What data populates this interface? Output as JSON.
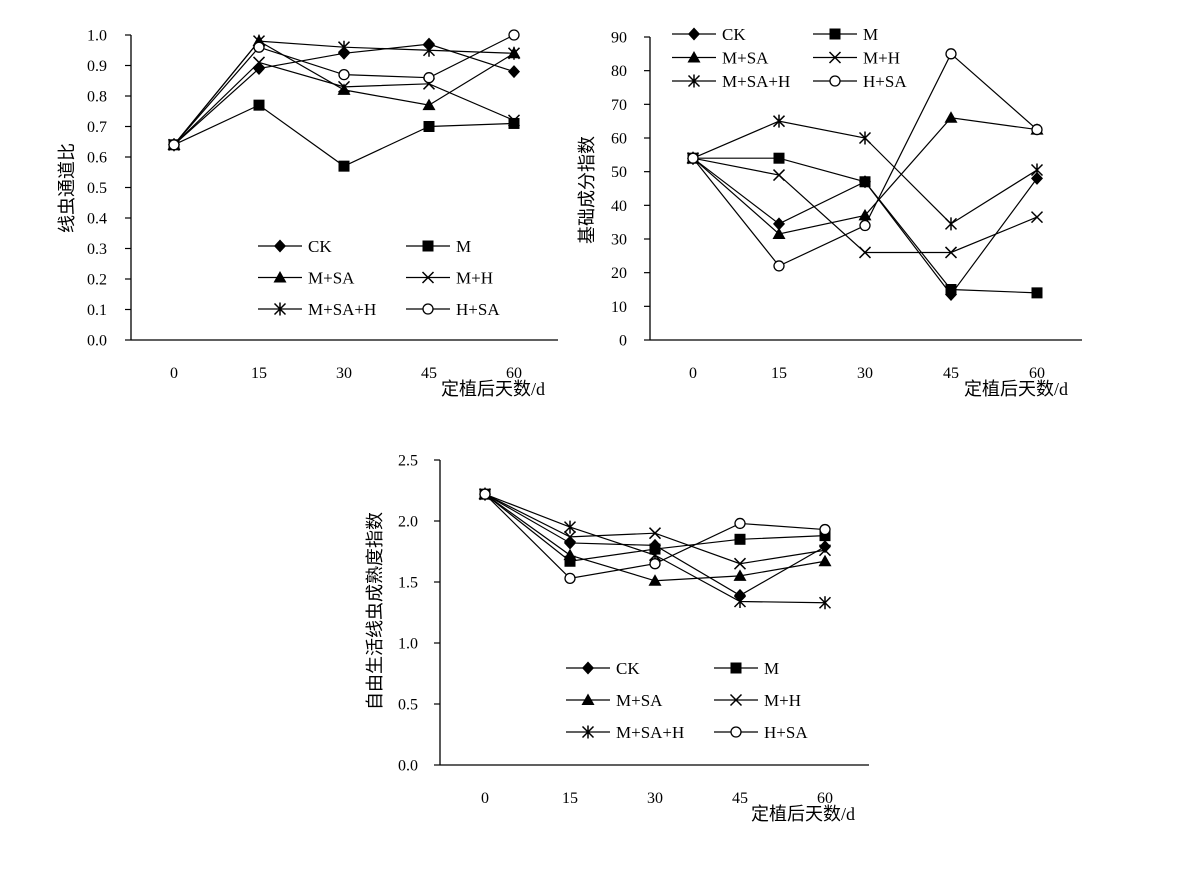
{
  "colors": {
    "line": "#000000",
    "background": "#ffffff"
  },
  "legend_marker_names": {
    "CK": "filled-diamond",
    "M": "filled-square",
    "M+SA": "filled-triangle",
    "M+H": "x-cross",
    "M+SA+H": "asterisk",
    "H+SA": "open-circle"
  },
  "chart_data": [
    {
      "type": "line",
      "xlabel": "定植后天数/d",
      "ylabel": "线虫通道比",
      "x": [
        0,
        15,
        30,
        45,
        60
      ],
      "ylim": [
        0.0,
        1.0
      ],
      "yticks": [
        "0.0",
        "0.1",
        "0.2",
        "0.3",
        "0.4",
        "0.5",
        "0.6",
        "0.7",
        "0.8",
        "0.9",
        "1.0"
      ],
      "legend_position": "bottom-right",
      "grid": false,
      "series": [
        {
          "name": "CK",
          "values": [
            0.64,
            0.89,
            0.94,
            0.97,
            0.88
          ]
        },
        {
          "name": "M",
          "values": [
            0.64,
            0.77,
            0.57,
            0.7,
            0.71
          ]
        },
        {
          "name": "M+SA",
          "values": [
            0.64,
            0.98,
            0.82,
            0.77,
            0.94
          ]
        },
        {
          "name": "M+H",
          "values": [
            0.64,
            0.91,
            0.83,
            0.84,
            0.72
          ]
        },
        {
          "name": "M+SA+H",
          "values": [
            0.64,
            0.98,
            0.96,
            0.95,
            0.94
          ]
        },
        {
          "name": "H+SA",
          "values": [
            0.64,
            0.96,
            0.87,
            0.86,
            1.0
          ]
        }
      ]
    },
    {
      "type": "line",
      "xlabel": "定植后天数/d",
      "ylabel": "基础成分指数",
      "x": [
        0,
        15,
        30,
        45,
        60
      ],
      "ylim": [
        0,
        90
      ],
      "yticks": [
        "0",
        "10",
        "20",
        "30",
        "40",
        "50",
        "60",
        "70",
        "80",
        "90"
      ],
      "legend_position": "top-left",
      "grid": false,
      "series": [
        {
          "name": "CK",
          "values": [
            54,
            34.5,
            47,
            13.5,
            48
          ]
        },
        {
          "name": "M",
          "values": [
            54,
            54,
            47,
            15,
            14
          ]
        },
        {
          "name": "M+SA",
          "values": [
            54,
            31.5,
            37,
            66,
            62.5
          ]
        },
        {
          "name": "M+H",
          "values": [
            54,
            49,
            26,
            26,
            36.5
          ]
        },
        {
          "name": "M+SA+H",
          "values": [
            54,
            65,
            60,
            34.5,
            50.5
          ]
        },
        {
          "name": "H+SA",
          "values": [
            54,
            22,
            34,
            85,
            62.5
          ]
        }
      ]
    },
    {
      "type": "line",
      "xlabel": "定植后天数/d",
      "ylabel": "自由生活线虫成熟度指数",
      "x": [
        0,
        15,
        30,
        45,
        60
      ],
      "ylim": [
        0.0,
        2.5
      ],
      "yticks": [
        "0.0",
        "0.5",
        "1.0",
        "1.5",
        "2.0",
        "2.5"
      ],
      "legend_position": "bottom-right",
      "grid": false,
      "series": [
        {
          "name": "CK",
          "values": [
            2.22,
            1.82,
            1.8,
            1.39,
            1.79
          ]
        },
        {
          "name": "M",
          "values": [
            2.22,
            1.67,
            1.77,
            1.85,
            1.88
          ]
        },
        {
          "name": "M+SA",
          "values": [
            2.22,
            1.72,
            1.51,
            1.55,
            1.67
          ]
        },
        {
          "name": "M+H",
          "values": [
            2.22,
            1.87,
            1.9,
            1.65,
            1.76
          ]
        },
        {
          "name": "M+SA+H",
          "values": [
            2.22,
            1.95,
            1.72,
            1.34,
            1.33
          ]
        },
        {
          "name": "H+SA",
          "values": [
            2.22,
            1.53,
            1.65,
            1.98,
            1.93
          ]
        }
      ]
    }
  ]
}
